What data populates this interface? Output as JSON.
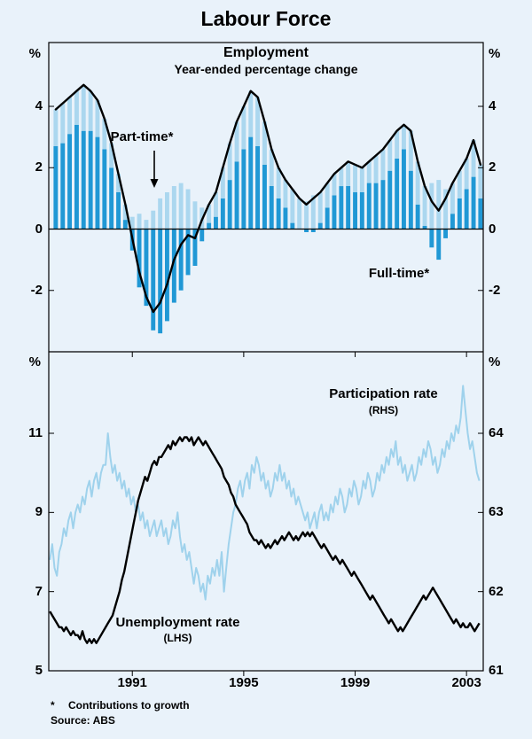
{
  "page": {
    "title": "Labour Force",
    "footnote_marker": "*",
    "footnote": "Contributions to growth",
    "source": "Source: ABS"
  },
  "colors": {
    "background": "#e9f2fa",
    "frame": "#000000",
    "bar_full_time": "#2098d5",
    "bar_part_time": "#abd7ef",
    "line_total": "#000000",
    "line_unemployment": "#000000",
    "line_participation": "#9fd2ec"
  },
  "chart_data": [
    {
      "type": "bar+line",
      "title": "Employment",
      "subtitle": "Year-ended percentage change",
      "unit": "%",
      "frequency": "quarterly",
      "x_start": 1988.25,
      "x_step": 0.25,
      "xlim": [
        1988.0,
        2003.6
      ],
      "ylim": [
        -4.0,
        6.08
      ],
      "yticks": [
        -2,
        0,
        2,
        4
      ],
      "annotations": {
        "part_time": "Part-time*",
        "full_time": "Full-time*"
      },
      "series": [
        {
          "name": "Full-time contribution",
          "type": "bar",
          "color": "#2098d5",
          "values": [
            2.7,
            2.8,
            3.1,
            3.4,
            3.2,
            3.2,
            3.0,
            2.6,
            2.0,
            1.2,
            0.3,
            -0.7,
            -1.9,
            -2.5,
            -3.3,
            -3.4,
            -3.0,
            -2.4,
            -2.0,
            -1.5,
            -1.2,
            -0.4,
            0.2,
            0.4,
            1.0,
            1.6,
            2.2,
            2.6,
            3.0,
            2.7,
            2.1,
            1.4,
            1.0,
            0.7,
            0.2,
            0.0,
            -0.1,
            -0.1,
            0.2,
            0.7,
            1.1,
            1.4,
            1.4,
            1.2,
            1.2,
            1.5,
            1.5,
            1.6,
            1.9,
            2.3,
            2.6,
            1.9,
            0.8,
            0.1,
            -0.6,
            -1.0,
            -0.3,
            0.5,
            1.0,
            1.3,
            1.7,
            1.0
          ]
        },
        {
          "name": "Part-time contribution",
          "type": "bar",
          "color": "#abd7ef",
          "values": [
            1.2,
            1.3,
            1.2,
            1.1,
            1.5,
            1.3,
            1.2,
            1.0,
            0.8,
            0.6,
            0.5,
            0.4,
            0.5,
            0.3,
            0.6,
            1.0,
            1.2,
            1.4,
            1.5,
            1.3,
            0.9,
            0.7,
            0.6,
            0.8,
            1.0,
            1.2,
            1.3,
            1.4,
            1.5,
            1.6,
            1.4,
            1.2,
            1.0,
            0.9,
            1.1,
            1.0,
            0.9,
            1.1,
            1.0,
            0.8,
            0.7,
            0.6,
            0.8,
            0.9,
            0.8,
            0.7,
            0.9,
            1.0,
            1.0,
            0.9,
            0.8,
            1.3,
            1.4,
            1.3,
            1.5,
            1.6,
            1.3,
            1.0,
            0.9,
            1.0,
            1.2,
            1.1
          ]
        },
        {
          "name": "Total employment year-ended percentage change",
          "type": "line",
          "color": "#000000",
          "values": [
            3.9,
            4.1,
            4.3,
            4.5,
            4.7,
            4.5,
            4.2,
            3.6,
            2.8,
            1.8,
            0.8,
            -0.3,
            -1.4,
            -2.2,
            -2.7,
            -2.4,
            -1.8,
            -1.0,
            -0.5,
            -0.2,
            -0.3,
            0.3,
            0.8,
            1.2,
            2.0,
            2.8,
            3.5,
            4.0,
            4.5,
            4.3,
            3.5,
            2.6,
            2.0,
            1.6,
            1.3,
            1.0,
            0.8,
            1.0,
            1.2,
            1.5,
            1.8,
            2.0,
            2.2,
            2.1,
            2.0,
            2.2,
            2.4,
            2.6,
            2.9,
            3.2,
            3.4,
            3.2,
            2.2,
            1.4,
            0.9,
            0.6,
            1.0,
            1.5,
            1.9,
            2.3,
            2.9,
            2.1
          ]
        }
      ]
    },
    {
      "type": "line",
      "unit": "%",
      "frequency": "monthly",
      "x_start": 1988.0417,
      "x_step": 0.0833333,
      "xlim": [
        1988.0,
        2003.6
      ],
      "xticks": [
        1991,
        1995,
        1999,
        2003
      ],
      "left": {
        "ylim": [
          5.0,
          13.06
        ],
        "yticks": [
          5,
          7,
          9,
          11
        ]
      },
      "right": {
        "ylim": [
          61.0,
          65.03
        ],
        "yticks": [
          61,
          62,
          63,
          64
        ]
      },
      "annotations": {
        "participation": "Participation rate",
        "participation_axis": "(RHS)",
        "unemployment": "Unemployment rate",
        "unemployment_axis": "(LHS)"
      },
      "series": [
        {
          "name": "Participation rate",
          "axis": "right",
          "color": "#9fd2ec",
          "values": [
            62.4,
            62.6,
            62.3,
            62.2,
            62.5,
            62.6,
            62.8,
            62.7,
            62.9,
            63.0,
            62.8,
            63.0,
            63.1,
            63.0,
            63.2,
            63.1,
            63.3,
            63.4,
            63.2,
            63.4,
            63.5,
            63.3,
            63.5,
            63.6,
            63.6,
            64.0,
            63.7,
            63.5,
            63.6,
            63.4,
            63.5,
            63.3,
            63.4,
            63.2,
            63.3,
            63.1,
            63.2,
            63.0,
            63.1,
            62.9,
            63.0,
            62.8,
            62.9,
            62.7,
            62.8,
            62.9,
            62.7,
            62.8,
            62.9,
            62.7,
            62.8,
            62.6,
            62.7,
            62.9,
            62.8,
            63.0,
            62.7,
            62.5,
            62.6,
            62.4,
            62.5,
            62.3,
            62.1,
            62.3,
            62.2,
            62.0,
            62.1,
            61.9,
            62.2,
            62.1,
            62.3,
            62.2,
            62.4,
            62.2,
            62.5,
            62.0,
            62.3,
            62.6,
            62.8,
            63.0,
            63.1,
            63.3,
            63.4,
            63.2,
            63.4,
            63.5,
            63.3,
            63.6,
            63.5,
            63.7,
            63.6,
            63.4,
            63.5,
            63.3,
            63.4,
            63.2,
            63.3,
            63.5,
            63.4,
            63.6,
            63.4,
            63.5,
            63.3,
            63.4,
            63.2,
            63.3,
            63.1,
            63.2,
            63.1,
            63.0,
            62.9,
            63.0,
            62.8,
            62.9,
            63.0,
            62.8,
            63.0,
            63.1,
            62.9,
            63.0,
            62.9,
            63.1,
            63.0,
            63.2,
            63.1,
            63.3,
            63.2,
            63.0,
            63.1,
            63.3,
            63.2,
            63.4,
            63.3,
            63.1,
            63.2,
            63.4,
            63.3,
            63.5,
            63.4,
            63.2,
            63.3,
            63.5,
            63.4,
            63.6,
            63.5,
            63.7,
            63.6,
            63.8,
            63.7,
            63.9,
            63.6,
            63.7,
            63.5,
            63.6,
            63.4,
            63.5,
            63.6,
            63.4,
            63.5,
            63.7,
            63.6,
            63.8,
            63.7,
            63.9,
            63.8,
            63.6,
            63.7,
            63.5,
            63.6,
            63.8,
            63.7,
            63.9,
            63.8,
            64.0,
            63.9,
            64.1,
            64.0,
            64.2,
            64.6,
            64.3,
            64.0,
            63.8,
            63.9,
            63.7,
            63.5,
            63.4
          ]
        },
        {
          "name": "Unemployment rate",
          "axis": "left",
          "color": "#000000",
          "values": [
            6.5,
            6.4,
            6.3,
            6.2,
            6.1,
            6.1,
            6.0,
            6.1,
            6.0,
            5.9,
            6.0,
            5.9,
            5.9,
            5.8,
            6.0,
            5.8,
            5.7,
            5.8,
            5.7,
            5.8,
            5.7,
            5.8,
            5.9,
            6.0,
            6.1,
            6.2,
            6.3,
            6.4,
            6.6,
            6.8,
            7.0,
            7.3,
            7.5,
            7.8,
            8.1,
            8.4,
            8.7,
            9.0,
            9.3,
            9.5,
            9.7,
            9.9,
            9.8,
            10.0,
            10.2,
            10.3,
            10.2,
            10.4,
            10.4,
            10.5,
            10.6,
            10.7,
            10.6,
            10.8,
            10.7,
            10.8,
            10.9,
            10.8,
            10.9,
            10.9,
            10.8,
            10.9,
            10.7,
            10.8,
            10.9,
            10.8,
            10.7,
            10.8,
            10.7,
            10.6,
            10.5,
            10.4,
            10.3,
            10.2,
            10.1,
            9.9,
            9.8,
            9.7,
            9.5,
            9.4,
            9.2,
            9.1,
            9.0,
            8.9,
            8.8,
            8.7,
            8.5,
            8.4,
            8.3,
            8.3,
            8.2,
            8.3,
            8.2,
            8.1,
            8.2,
            8.1,
            8.2,
            8.3,
            8.2,
            8.3,
            8.4,
            8.3,
            8.4,
            8.5,
            8.4,
            8.3,
            8.4,
            8.3,
            8.4,
            8.5,
            8.4,
            8.5,
            8.4,
            8.5,
            8.4,
            8.3,
            8.2,
            8.1,
            8.2,
            8.1,
            8.0,
            7.9,
            7.8,
            7.9,
            7.8,
            7.7,
            7.8,
            7.7,
            7.6,
            7.5,
            7.4,
            7.5,
            7.4,
            7.3,
            7.2,
            7.1,
            7.0,
            6.9,
            6.8,
            6.9,
            6.8,
            6.7,
            6.6,
            6.5,
            6.4,
            6.3,
            6.2,
            6.3,
            6.2,
            6.1,
            6.0,
            6.1,
            6.0,
            6.1,
            6.2,
            6.3,
            6.4,
            6.5,
            6.6,
            6.7,
            6.8,
            6.9,
            6.8,
            6.9,
            7.0,
            7.1,
            7.0,
            6.9,
            6.8,
            6.7,
            6.6,
            6.5,
            6.4,
            6.3,
            6.2,
            6.3,
            6.2,
            6.1,
            6.2,
            6.1,
            6.1,
            6.2,
            6.1,
            6.0,
            6.1,
            6.2
          ]
        }
      ]
    }
  ]
}
